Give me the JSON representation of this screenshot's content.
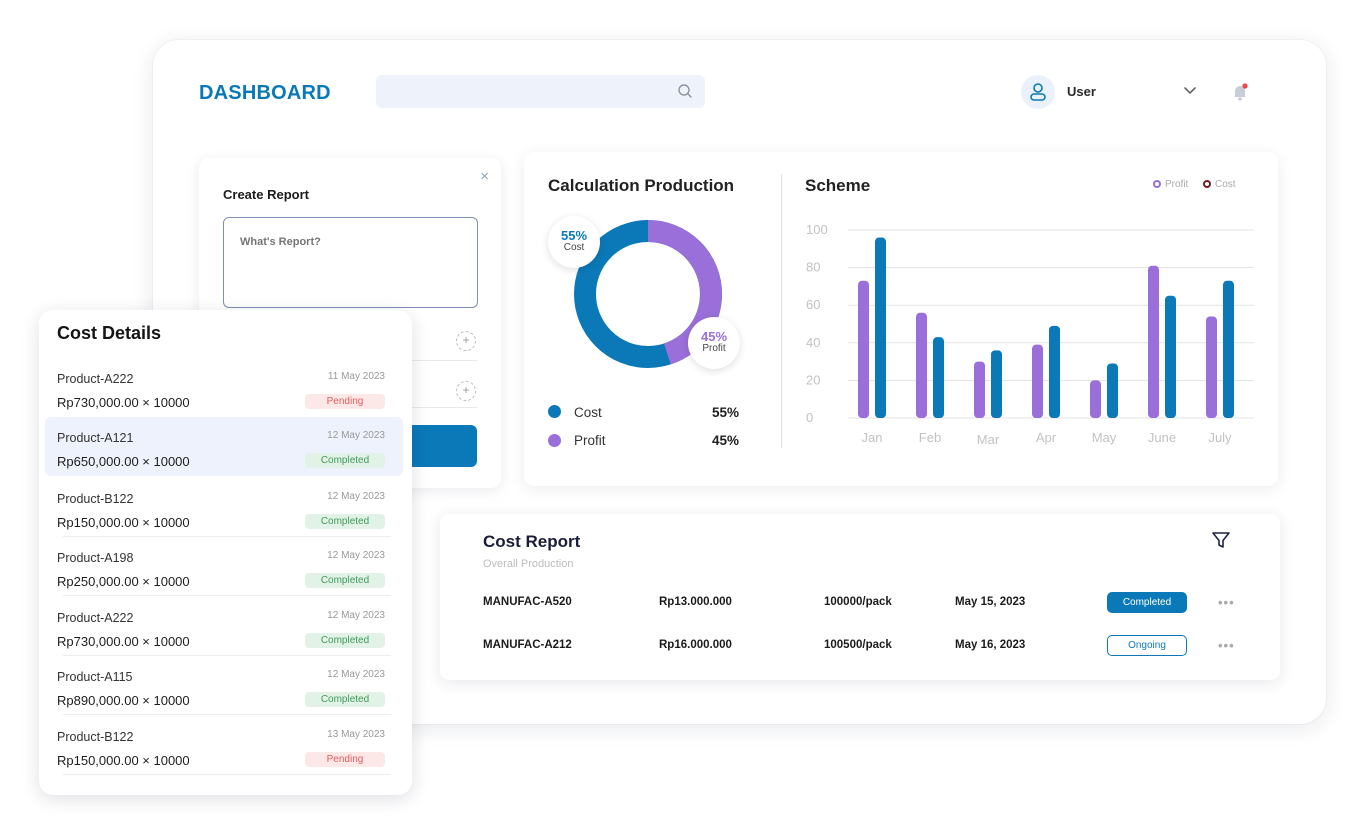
{
  "header": {
    "brand": "DASHBOARD",
    "search_placeholder": "",
    "user_name": "User"
  },
  "create_report": {
    "title": "Create Report",
    "close": "×",
    "placeholder": "What's Report?",
    "plus": "+"
  },
  "cost_details": {
    "title": "Cost Details",
    "items": [
      {
        "name": "Product-A222",
        "date": "11 May 2023",
        "price": "Rp730,000.00 × 10000",
        "status": "Pending"
      },
      {
        "name": "Product-A121",
        "date": "12 May 2023",
        "price": "Rp650,000.00 × 10000",
        "status": "Completed"
      },
      {
        "name": "Product-B122",
        "date": "12 May 2023",
        "price": "Rp150,000.00 × 10000",
        "status": "Completed"
      },
      {
        "name": "Product-A198",
        "date": "12 May 2023",
        "price": "Rp250,000.00 × 10000",
        "status": "Completed"
      },
      {
        "name": "Product-A222",
        "date": "12 May 2023",
        "price": "Rp730,000.00 × 10000",
        "status": "Completed"
      },
      {
        "name": "Product-A115",
        "date": "12 May 2023",
        "price": "Rp890,000.00 × 10000",
        "status": "Completed"
      },
      {
        "name": "Product-B122",
        "date": "13 May 2023",
        "price": "Rp150,000.00 × 10000",
        "status": "Pending"
      }
    ]
  },
  "calculation": {
    "title": "Calculation Production",
    "cost": {
      "label": "Cost",
      "percent": "55%",
      "value": 55,
      "color": "#0b79b8"
    },
    "profit": {
      "label": "Profit",
      "percent": "45%",
      "value": 45,
      "color": "#9a6fd9"
    }
  },
  "scheme": {
    "title": "Scheme",
    "legend": {
      "profit": "Profit",
      "cost": "Cost"
    }
  },
  "chart_data": {
    "type": "bar",
    "categories": [
      "Jan",
      "Feb",
      "Mar",
      "Apr",
      "May",
      "June",
      "July"
    ],
    "series": [
      {
        "name": "Profit",
        "values": [
          73,
          56,
          30,
          39,
          20,
          81,
          54
        ],
        "color": "#9a6fd9"
      },
      {
        "name": "Cost",
        "values": [
          96,
          43,
          36,
          49,
          29,
          65,
          73
        ],
        "color": "#0b79b8"
      }
    ],
    "yticks": [
      "0",
      "20",
      "40",
      "60",
      "80",
      "100"
    ],
    "ylim": [
      0,
      100
    ],
    "grid": true,
    "legend": "top-right"
  },
  "cost_report": {
    "title": "Cost Report",
    "subtitle": "Overall Production",
    "rows": [
      {
        "code": "MANUFAC-A520",
        "amount": "Rp13.000.000",
        "qty": "100000/pack",
        "date": "May 15, 2023",
        "status": "Completed",
        "more": "•••"
      },
      {
        "code": "MANUFAC-A212",
        "amount": "Rp16.000.000",
        "qty": "100500/pack",
        "date": "May 16, 2023",
        "status": "Ongoing",
        "more": "•••"
      }
    ]
  }
}
